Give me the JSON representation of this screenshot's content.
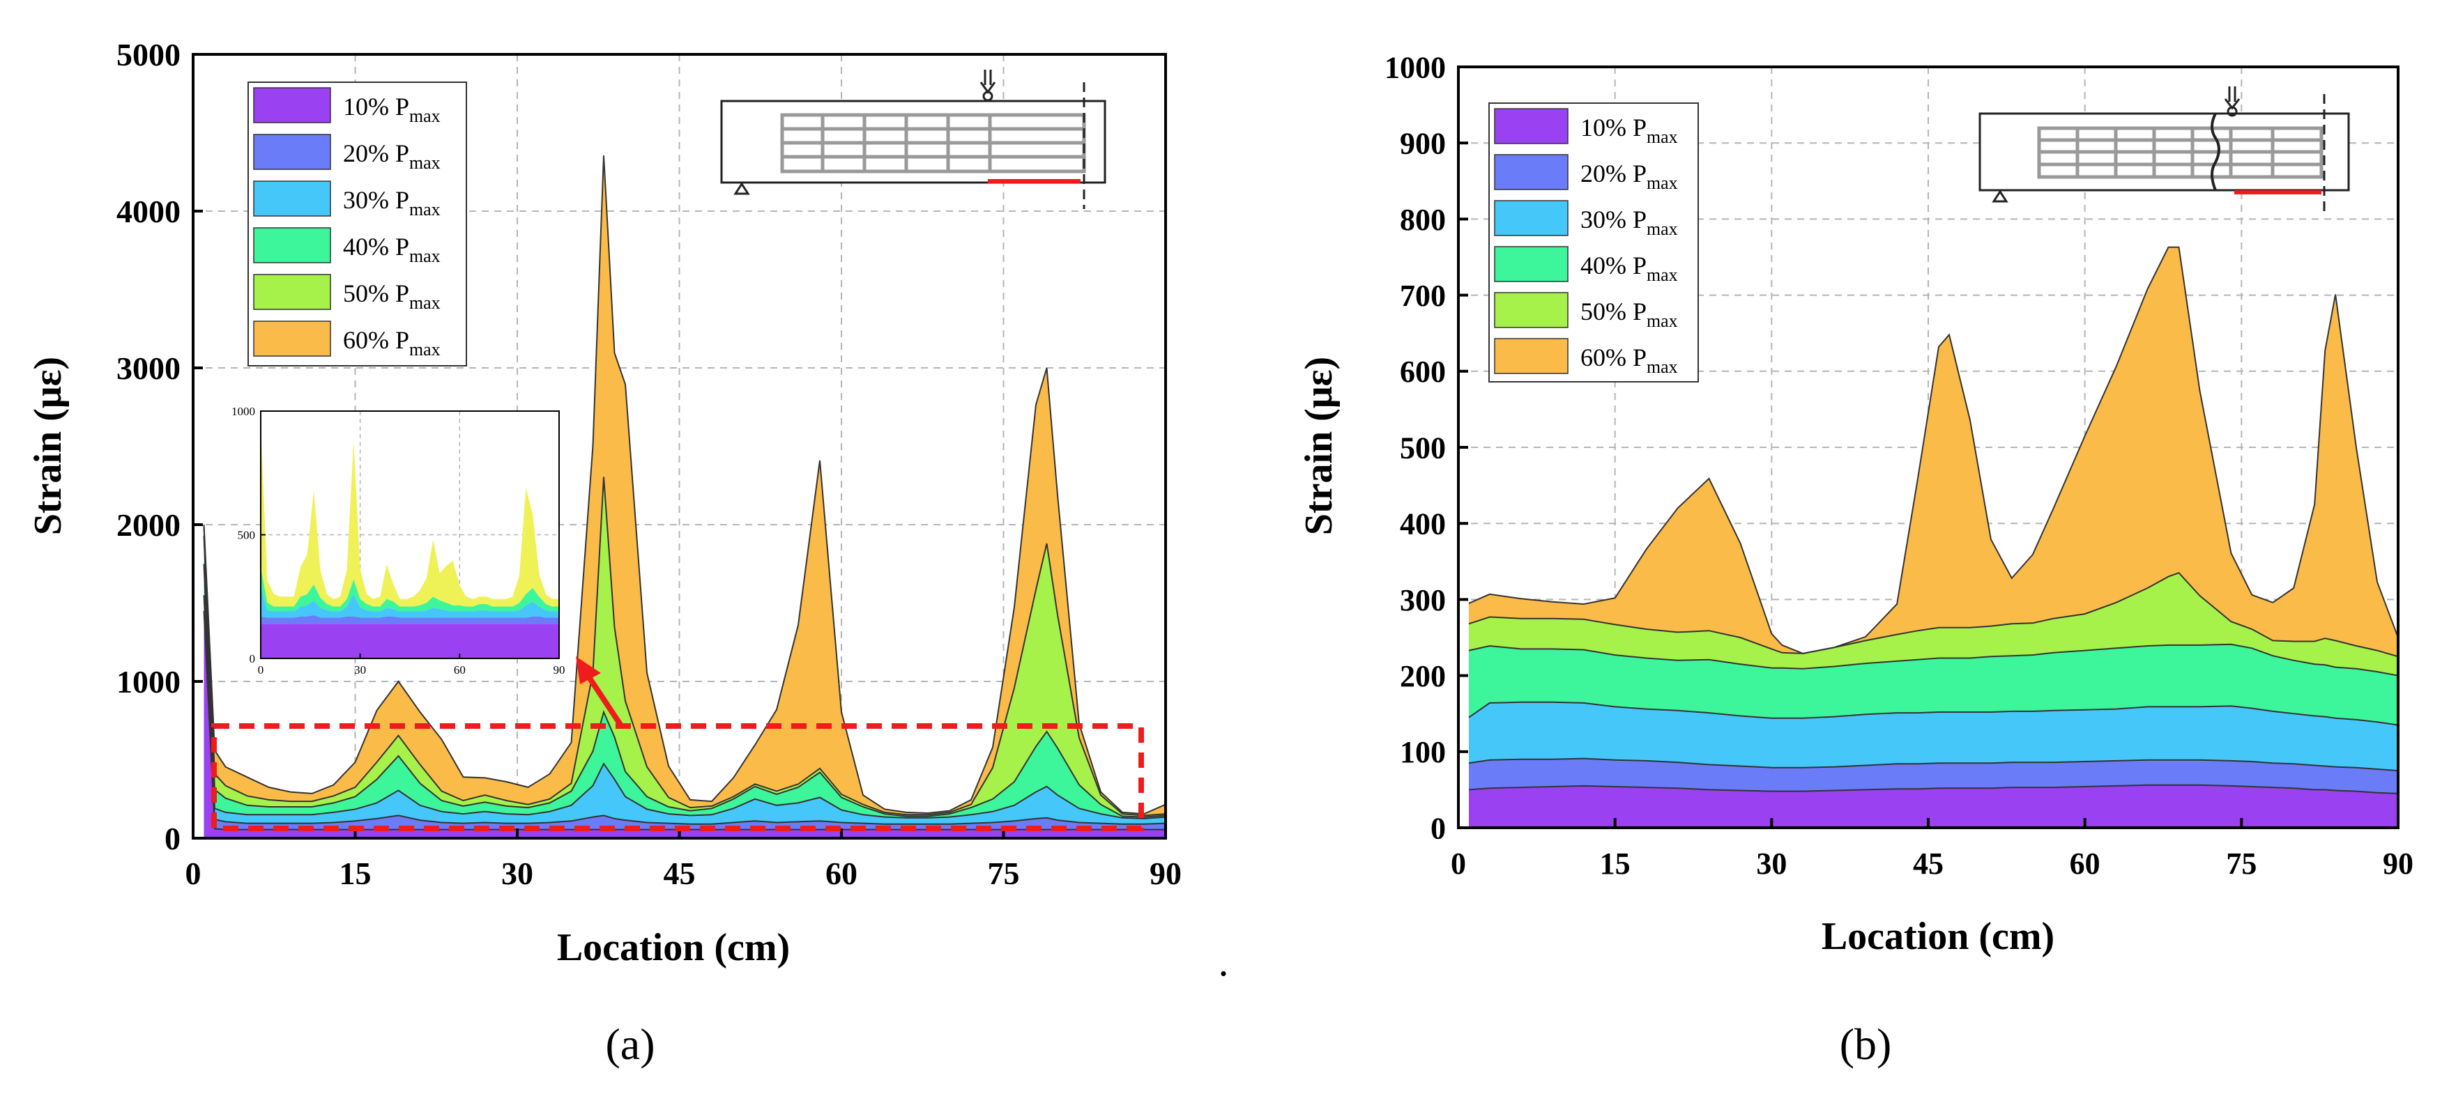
{
  "colors": {
    "p10": "#9a41f2",
    "p20": "#6a7cf8",
    "p30": "#45c8f9",
    "p40": "#3df59a",
    "p50": "#a6f24a",
    "p60": "#fbbb48",
    "inset_top": "#eef257",
    "axis": "#000000",
    "grid": "#b5b5b5",
    "highlight": "#ee1c1c",
    "diagram_line": "#888888"
  },
  "caption_dot": ".",
  "chart_data": [
    {
      "id": "a",
      "type": "area",
      "stacked": true,
      "caption": "(a)",
      "xlabel": "Location (cm)",
      "ylabel": "Strain (με)",
      "xlim": [
        0,
        90
      ],
      "ylim": [
        0,
        5000
      ],
      "xticks": [
        "0",
        "15",
        "30",
        "45",
        "60",
        "75",
        "90"
      ],
      "yticks": [
        "0",
        "1000",
        "2000",
        "3000",
        "4000",
        "5000"
      ],
      "grid": true,
      "legend_position": "top-left",
      "x": [
        1,
        2,
        3,
        5,
        7,
        9,
        11,
        13,
        15,
        17,
        19,
        21,
        23,
        25,
        27,
        29,
        31,
        33,
        35,
        37,
        38,
        39,
        40,
        42,
        44,
        46,
        48,
        50,
        52,
        54,
        56,
        58,
        60,
        62,
        64,
        66,
        68,
        70,
        72,
        74,
        76,
        78,
        79,
        80,
        82,
        84,
        86,
        88,
        90
      ],
      "series": [
        {
          "name": "10% P",
          "sub": "max",
          "color_key": "p10",
          "values": [
            1450,
            60,
            55,
            55,
            55,
            55,
            55,
            55,
            55,
            55,
            55,
            55,
            55,
            55,
            55,
            55,
            55,
            55,
            55,
            55,
            55,
            55,
            55,
            55,
            55,
            55,
            55,
            55,
            55,
            55,
            55,
            55,
            55,
            55,
            55,
            55,
            55,
            55,
            55,
            55,
            55,
            55,
            55,
            55,
            55,
            55,
            55,
            55,
            55
          ]
        },
        {
          "name": "20% P",
          "sub": "max",
          "color_key": "p20",
          "values": [
            100,
            60,
            50,
            40,
            40,
            40,
            40,
            45,
            55,
            70,
            90,
            60,
            45,
            40,
            45,
            40,
            40,
            45,
            55,
            80,
            90,
            70,
            60,
            45,
            40,
            35,
            35,
            45,
            55,
            45,
            50,
            55,
            45,
            40,
            35,
            35,
            35,
            35,
            40,
            45,
            55,
            70,
            75,
            60,
            45,
            40,
            35,
            35,
            40
          ]
        },
        {
          "name": "30% P",
          "sub": "max",
          "color_key": "p30",
          "values": [
            200,
            70,
            60,
            55,
            55,
            55,
            55,
            65,
            75,
            100,
            160,
            95,
            70,
            60,
            70,
            60,
            55,
            70,
            100,
            200,
            330,
            250,
            150,
            85,
            60,
            55,
            60,
            90,
            140,
            110,
            120,
            150,
            80,
            55,
            45,
            40,
            40,
            45,
            55,
            70,
            100,
            170,
            200,
            160,
            90,
            60,
            40,
            35,
            40
          ]
        },
        {
          "name": "40% P",
          "sub": "max",
          "color_key": "p40",
          "values": [
            180,
            120,
            90,
            60,
            50,
            50,
            50,
            60,
            80,
            150,
            220,
            140,
            70,
            50,
            60,
            50,
            45,
            55,
            90,
            220,
            330,
            270,
            160,
            80,
            45,
            30,
            40,
            60,
            80,
            70,
            100,
            160,
            80,
            50,
            20,
            10,
            10,
            20,
            45,
            80,
            150,
            290,
            350,
            300,
            150,
            60,
            10,
            10,
            10
          ]
        },
        {
          "name": "50% P",
          "sub": "max",
          "color_key": "p50",
          "values": [
            55,
            100,
            80,
            60,
            45,
            35,
            35,
            45,
            60,
            110,
            130,
            120,
            60,
            35,
            45,
            35,
            20,
            25,
            50,
            500,
            1500,
            700,
            450,
            190,
            60,
            20,
            15,
            15,
            15,
            20,
            20,
            25,
            20,
            15,
            10,
            10,
            10,
            10,
            20,
            200,
            600,
            1000,
            1200,
            850,
            300,
            60,
            15,
            10,
            10
          ]
        },
        {
          "name": "60% P",
          "sub": "max",
          "color_key": "p60",
          "values": [
            15,
            150,
            120,
            120,
            80,
            60,
            50,
            70,
            160,
            330,
            345,
            335,
            330,
            150,
            110,
            120,
            110,
            160,
            260,
            1450,
            2050,
            1750,
            2020,
            600,
            200,
            50,
            30,
            120,
            250,
            520,
            1015,
            1965,
            525,
            60,
            20,
            15,
            10,
            10,
            30,
            130,
            515,
            1180,
            1120,
            765,
            90,
            20,
            10,
            10,
            60
          ]
        }
      ],
      "inset": {
        "xlim": [
          0,
          90
        ],
        "ylim": [
          0,
          1000
        ],
        "xticks": [
          "0",
          "30",
          "60",
          "90"
        ],
        "yticks": [
          "0",
          "500",
          "1000"
        ],
        "x": [
          0,
          2,
          4,
          6,
          8,
          10,
          12,
          14,
          16,
          18,
          20,
          22,
          24,
          26,
          28,
          30,
          32,
          34,
          36,
          38,
          40,
          42,
          44,
          46,
          48,
          50,
          52,
          54,
          56,
          58,
          60,
          62,
          64,
          66,
          68,
          70,
          72,
          74,
          76,
          78,
          80,
          82,
          84,
          86,
          88,
          90
        ],
        "layers": [
          {
            "color_key": "p10",
            "values": [
              140,
              140,
              140,
              140,
              140,
              140,
              140,
              140,
              140,
              140,
              140,
              140,
              140,
              140,
              140,
              140,
              140,
              140,
              140,
              140,
              140,
              140,
              140,
              140,
              140,
              140,
              140,
              140,
              140,
              140,
              140,
              140,
              140,
              140,
              140,
              140,
              140,
              140,
              140,
              140,
              140,
              140,
              140,
              140,
              140,
              140
            ]
          },
          {
            "color_key": "p20",
            "values": [
              30,
              25,
              25,
              25,
              25,
              25,
              30,
              30,
              35,
              25,
              25,
              25,
              25,
              30,
              30,
              25,
              25,
              25,
              25,
              30,
              30,
              25,
              25,
              25,
              25,
              25,
              25,
              25,
              25,
              25,
              25,
              25,
              25,
              25,
              25,
              25,
              25,
              25,
              25,
              25,
              25,
              30,
              30,
              25,
              25,
              25
            ]
          },
          {
            "color_key": "p30",
            "values": [
              120,
              30,
              25,
              25,
              25,
              25,
              40,
              45,
              60,
              40,
              30,
              25,
              25,
              40,
              90,
              40,
              30,
              25,
              25,
              35,
              30,
              25,
              25,
              25,
              25,
              30,
              40,
              35,
              30,
              25,
              25,
              25,
              25,
              30,
              30,
              25,
              25,
              25,
              25,
              30,
              50,
              60,
              40,
              30,
              25,
              25
            ]
          },
          {
            "color_key": "p40",
            "values": [
              80,
              30,
              20,
              20,
              20,
              20,
              40,
              45,
              65,
              40,
              25,
              20,
              20,
              30,
              60,
              35,
              25,
              20,
              20,
              35,
              30,
              20,
              20,
              20,
              25,
              30,
              45,
              35,
              30,
              25,
              25,
              20,
              20,
              25,
              25,
              20,
              20,
              20,
              20,
              30,
              45,
              55,
              40,
              25,
              20,
              20
            ]
          },
          {
            "color_key": "inset_top",
            "values": [
              580,
              90,
              50,
              40,
              40,
              40,
              120,
              160,
              380,
              110,
              40,
              30,
              40,
              120,
              560,
              120,
              40,
              30,
              40,
              140,
              70,
              30,
              30,
              40,
              60,
              100,
              230,
              110,
              150,
              180,
              80,
              40,
              30,
              30,
              30,
              30,
              30,
              30,
              40,
              110,
              430,
              300,
              90,
              40,
              30,
              30
            ]
          }
        ]
      }
    },
    {
      "id": "b",
      "type": "area",
      "stacked": true,
      "caption": "(b)",
      "xlabel": "Location (cm)",
      "ylabel": "Strain (με)",
      "xlim": [
        0,
        90
      ],
      "ylim": [
        0,
        1000
      ],
      "xticks": [
        "0",
        "15",
        "30",
        "45",
        "60",
        "75",
        "90"
      ],
      "yticks": [
        "0",
        "100",
        "200",
        "300",
        "400",
        "500",
        "600",
        "700",
        "800",
        "900",
        "1000"
      ],
      "grid": true,
      "legend_position": "top-left",
      "x": [
        1,
        3,
        6,
        9,
        12,
        15,
        18,
        21,
        24,
        27,
        30,
        31,
        33,
        36,
        39,
        42,
        44,
        46,
        47,
        49,
        51,
        53,
        55,
        57,
        60,
        63,
        66,
        68,
        69,
        71,
        74,
        76,
        78,
        80,
        82,
        83,
        84,
        86,
        88,
        90
      ],
      "series": [
        {
          "name": "10% P",
          "sub": "max",
          "color_key": "p10",
          "values": [
            50,
            52,
            53,
            54,
            55,
            54,
            53,
            52,
            50,
            49,
            48,
            48,
            48,
            49,
            50,
            51,
            51,
            52,
            52,
            52,
            52,
            53,
            53,
            53,
            54,
            55,
            56,
            56,
            56,
            56,
            55,
            54,
            53,
            52,
            50,
            50,
            49,
            48,
            46,
            45
          ]
        },
        {
          "name": "20% P",
          "sub": "max",
          "color_key": "p20",
          "values": [
            35,
            37,
            37,
            36,
            36,
            35,
            35,
            34,
            33,
            32,
            31,
            31,
            31,
            31,
            32,
            33,
            33,
            33,
            33,
            33,
            33,
            33,
            33,
            33,
            33,
            33,
            33,
            33,
            33,
            33,
            33,
            33,
            32,
            32,
            32,
            31,
            31,
            31,
            31,
            30
          ]
        },
        {
          "name": "30% P",
          "sub": "max",
          "color_key": "p30",
          "values": [
            60,
            75,
            75,
            75,
            73,
            70,
            68,
            68,
            68,
            66,
            65,
            65,
            65,
            66,
            67,
            67,
            67,
            67,
            67,
            67,
            67,
            67,
            67,
            68,
            68,
            68,
            70,
            70,
            70,
            70,
            72,
            70,
            68,
            66,
            65,
            65,
            64,
            63,
            62,
            60
          ]
        },
        {
          "name": "40% P",
          "sub": "max",
          "color_key": "p40",
          "values": [
            88,
            75,
            70,
            70,
            70,
            68,
            67,
            66,
            70,
            68,
            66,
            66,
            65,
            66,
            67,
            68,
            70,
            71,
            71,
            71,
            73,
            73,
            74,
            76,
            78,
            80,
            80,
            81,
            81,
            81,
            81,
            79,
            73,
            70,
            68,
            68,
            67,
            67,
            66,
            65
          ]
        },
        {
          "name": "50% P",
          "sub": "max",
          "color_key": "p50",
          "values": [
            35,
            38,
            40,
            40,
            40,
            40,
            38,
            37,
            38,
            35,
            25,
            20,
            20,
            25,
            30,
            35,
            38,
            40,
            40,
            40,
            40,
            42,
            42,
            45,
            48,
            60,
            76,
            90,
            95,
            65,
            30,
            25,
            20,
            25,
            30,
            35,
            35,
            30,
            28,
            25
          ]
        },
        {
          "name": "60% P",
          "sub": "max",
          "color_key": "p60",
          "values": [
            27,
            30,
            26,
            22,
            20,
            35,
            105,
            163,
            200,
            124,
            20,
            10,
            0,
            0,
            5,
            40,
            200,
            369,
            385,
            273,
            114,
            60,
            90,
            145,
            234,
            310,
            393,
            433,
            428,
            270,
            90,
            45,
            50,
            70,
            180,
            378,
            455,
            260,
            90,
            25
          ]
        }
      ]
    }
  ]
}
